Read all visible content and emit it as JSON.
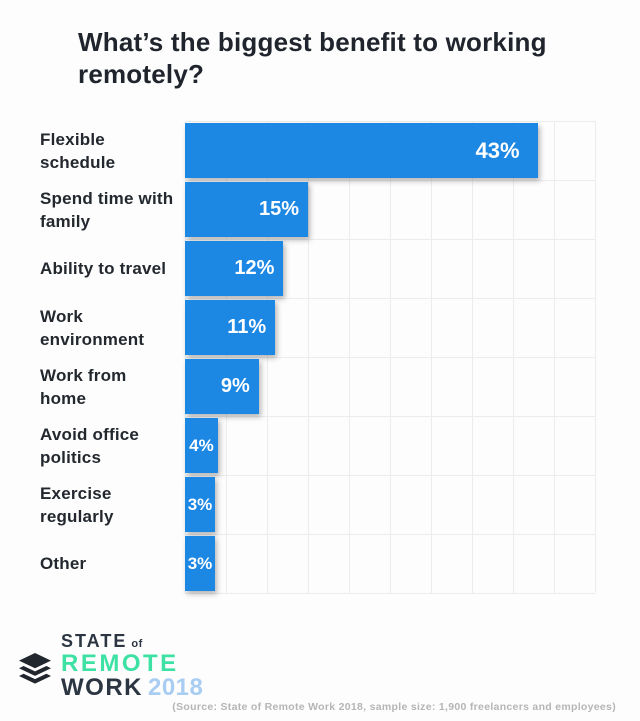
{
  "title": "What’s the biggest benefit to working remotely?",
  "chart_data": {
    "type": "bar",
    "orientation": "horizontal",
    "title": "What’s the biggest benefit to working remotely?",
    "categories": [
      "Flexible schedule",
      "Spend time with family",
      "Ability to travel",
      "Work environment",
      "Work from home",
      "Avoid office politics",
      "Exercise regularly",
      "Other"
    ],
    "values": [
      43,
      15,
      12,
      11,
      9,
      4,
      3,
      3
    ],
    "data_labels": [
      "43%",
      "15%",
      "12%",
      "11%",
      "9%",
      "4%",
      "3%",
      "3%"
    ],
    "value_suffix": "%",
    "xlim": [
      0,
      50
    ],
    "grid_step": 5,
    "grid": true,
    "legend": false,
    "xlabel": "",
    "ylabel": ""
  },
  "footer": {
    "logo": {
      "icon": "layers-stack-icon",
      "state": "STATE",
      "of": "of",
      "remote": "REMOTE",
      "work": "WORK",
      "year": "2018"
    },
    "source_note": "(Source: State of Remote Work 2018, sample size: 1,900 freelancers and employees)"
  },
  "colors": {
    "bar_blue": "#1d87e4",
    "bar_value_text": "#ffffff",
    "title_text": "#20252d",
    "category_text": "#23282f",
    "gridline": "#ececec",
    "background": "#fdfdfd",
    "logo_dark": "#2c3642",
    "logo_green": "#3ee1a4",
    "logo_year_blue": "#a9cdf2",
    "source_text": "#b5b5b5"
  }
}
